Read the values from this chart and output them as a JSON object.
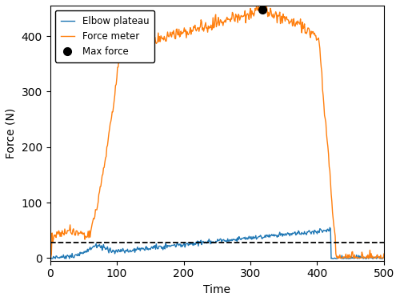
{
  "xlabel": "Time",
  "ylabel": "Force (N)",
  "xlim": [
    0,
    500
  ],
  "ylim": [
    -5,
    455
  ],
  "yticks": [
    0,
    100,
    200,
    300,
    400
  ],
  "xticks": [
    0,
    100,
    200,
    300,
    400,
    500
  ],
  "dashed_line_y": 28,
  "max_force_x": 318,
  "max_force_y": 447,
  "legend_labels": [
    "Elbow plateau",
    "Force meter",
    "Max force"
  ],
  "blue_color": "#1f77b4",
  "orange_color": "#ff7f0e",
  "seed": 42,
  "figsize": [
    5.0,
    3.76
  ],
  "dpi": 100
}
